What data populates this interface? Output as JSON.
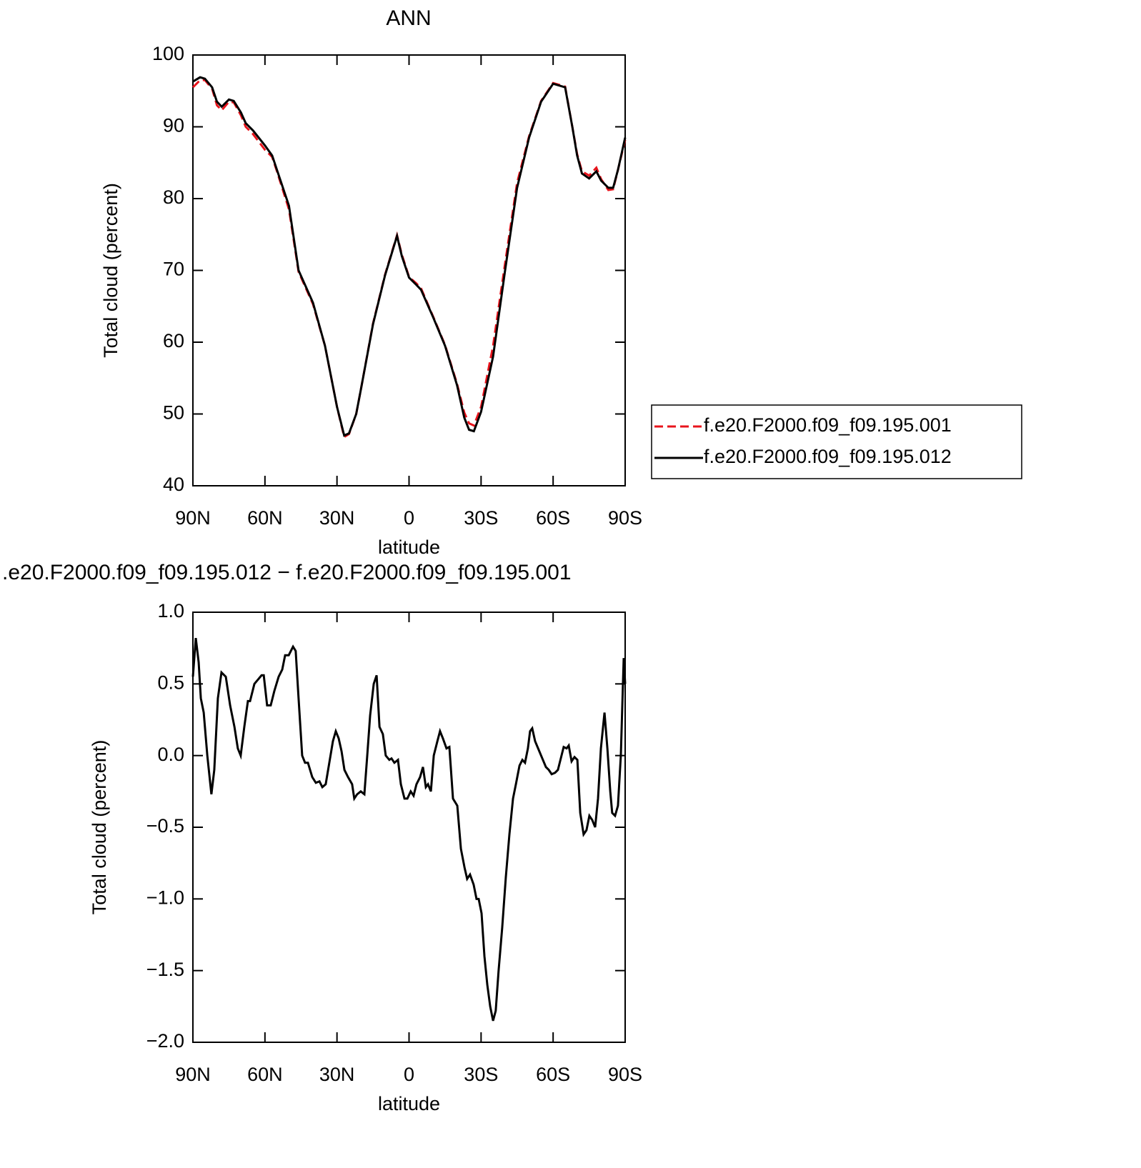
{
  "chart_data": [
    {
      "type": "line",
      "title": "ANN",
      "xlabel": "latitude",
      "ylabel": "Total cloud (percent)",
      "xlim": [
        90,
        -90
      ],
      "xticks": [
        {
          "value": 90,
          "label": "90N"
        },
        {
          "value": 60,
          "label": "60N"
        },
        {
          "value": 30,
          "label": "30N"
        },
        0,
        {
          "value": -30,
          "label": "30S"
        },
        {
          "value": -60,
          "label": "60S"
        },
        {
          "value": -90,
          "label": "90S"
        }
      ],
      "ylim": [
        40,
        100
      ],
      "yticks": [
        40,
        50,
        60,
        70,
        80,
        90,
        100
      ],
      "legend": "right",
      "x": [
        90,
        87,
        85,
        82,
        80,
        78,
        75,
        73,
        70,
        68,
        65,
        60,
        57,
        55,
        50,
        46,
        42,
        40,
        35,
        30,
        27,
        25,
        22,
        20,
        15,
        10,
        5,
        3,
        0,
        -3,
        -5,
        -10,
        -15,
        -20,
        -23,
        -25,
        -27,
        -30,
        -35,
        -40,
        -45,
        -50,
        -55,
        -60,
        -65,
        -68,
        -70,
        -72,
        -75,
        -78,
        -80,
        -83,
        -85,
        -87,
        -90
      ],
      "series": [
        {
          "name": "f.e20.F2000.f09_f09.195.001",
          "color": "#e8141c",
          "linestyle": "dashed",
          "values": [
            95.5,
            96.5,
            96.5,
            95.3,
            93,
            92.3,
            93.5,
            93.4,
            91.6,
            90,
            89,
            86.8,
            85.8,
            83.8,
            78.5,
            69.8,
            66.8,
            65.3,
            59.5,
            51,
            46.8,
            47.2,
            50,
            53.5,
            62.6,
            69.4,
            74.9,
            72.2,
            69.1,
            68.2,
            67.5,
            63.6,
            59.6,
            54.2,
            50.2,
            48.7,
            48.4,
            51,
            59.5,
            71,
            82.2,
            88.7,
            93.6,
            96.1,
            95.6,
            90,
            86.2,
            83.8,
            83.2,
            84.3,
            82.7,
            81.2,
            81.3,
            84,
            88.2
          ]
        },
        {
          "name": "f.e20.F2000.f09_f09.195.012",
          "color": "#000000",
          "linestyle": "solid",
          "values": [
            96.3,
            96.9,
            96.7,
            95.5,
            93.5,
            92.8,
            93.8,
            93.6,
            92,
            90.5,
            89.5,
            87.4,
            86,
            84,
            79,
            70,
            67,
            65.5,
            59.5,
            51,
            47,
            47.3,
            50,
            53.5,
            62.5,
            69.3,
            74.8,
            72,
            69,
            68,
            67.3,
            63.5,
            59.5,
            54,
            49.5,
            47.8,
            47.6,
            50.3,
            58,
            70,
            81.5,
            88.5,
            93.5,
            96,
            95.5,
            90,
            86,
            83.5,
            82.8,
            83.8,
            82.5,
            81.5,
            81.5,
            84,
            88.5
          ]
        }
      ]
    },
    {
      "type": "line",
      "title": ".e20.F2000.f09_f09.195.012 − f.e20.F2000.f09_f09.195.001",
      "xlabel": "latitude",
      "ylabel": "Total cloud (percent)",
      "xlim": [
        90,
        -90
      ],
      "xticks": [
        {
          "value": 90,
          "label": "90N"
        },
        {
          "value": 60,
          "label": "60N"
        },
        {
          "value": 30,
          "label": "30N"
        },
        0,
        {
          "value": -30,
          "label": "30S"
        },
        {
          "value": -60,
          "label": "60S"
        },
        {
          "value": -90,
          "label": "90S"
        }
      ],
      "ylim": [
        -2,
        1
      ],
      "yticks": [
        {
          "value": -2,
          "label": "−2.0"
        },
        {
          "value": -1.5,
          "label": "−1.5"
        },
        {
          "value": -1,
          "label": "−1.0"
        },
        {
          "value": -0.5,
          "label": "−0.5"
        },
        {
          "value": 0,
          "label": "0.0"
        },
        {
          "value": 0.5,
          "label": "0.5"
        },
        {
          "value": 1,
          "label": "1.0"
        }
      ],
      "x": [
        90,
        88.8,
        87.6,
        86.7,
        85.5,
        84.0,
        82.3,
        81.1,
        79.6,
        78.1,
        76.3,
        74.5,
        72.7,
        71.3,
        70.1,
        68.6,
        67.1,
        66.2,
        64.4,
        62.9,
        61.4,
        60.5,
        59.1,
        57.6,
        56.1,
        54.3,
        52.8,
        51.6,
        50.1,
        48.3,
        47.2,
        46.0,
        44.5,
        43.3,
        42.1,
        40.3,
        38.8,
        37.3,
        36.1,
        34.7,
        33.2,
        31.7,
        30.5,
        29.3,
        28.1,
        26.9,
        25.4,
        23.7,
        22.8,
        21.6,
        20.1,
        18.6,
        17.4,
        16.2,
        14.7,
        13.5,
        12.3,
        10.9,
        9.7,
        8.2,
        7.3,
        6.1,
        4.6,
        3.4,
        1.9,
        0.7,
        -0.7,
        -1.9,
        -3.1,
        -4.6,
        -5.8,
        -7.0,
        -7.9,
        -9.1,
        -10.3,
        -11.8,
        -12.9,
        -14.1,
        -15.6,
        -16.8,
        -18.3,
        -20.1,
        -21.6,
        -23.1,
        -24.2,
        -25.4,
        -26.9,
        -28.1,
        -29.0,
        -30.2,
        -31.4,
        -32.6,
        -33.8,
        -35.0,
        -36.1,
        -37.3,
        -38.8,
        -40.3,
        -41.8,
        -43.3,
        -44.5,
        -46.0,
        -47.2,
        -48.3,
        -49.5,
        -50.4,
        -51.3,
        -52.5,
        -54.0,
        -55.5,
        -57.0,
        -58.2,
        -59.4,
        -60.8,
        -62.0,
        -63.2,
        -64.4,
        -65.6,
        -66.5,
        -67.7,
        -68.9,
        -70.1,
        -71.3,
        -72.7,
        -73.9,
        -75.1,
        -76.3,
        -77.5,
        -78.7,
        -79.9,
        -81.4,
        -82.6,
        -83.8,
        -84.6,
        -85.8,
        -87.0,
        -88.2,
        -89.4,
        -90.0
      ],
      "series": [
        {
          "color": "#000000",
          "linestyle": "solid",
          "values": [
            0.55,
            0.82,
            0.65,
            0.4,
            0.3,
            0.0,
            -0.27,
            -0.1,
            0.4,
            0.58,
            0.55,
            0.35,
            0.2,
            0.05,
            0.0,
            0.2,
            0.38,
            0.38,
            0.5,
            0.53,
            0.56,
            0.56,
            0.35,
            0.35,
            0.45,
            0.55,
            0.6,
            0.7,
            0.7,
            0.76,
            0.73,
            0.4,
            0.0,
            -0.05,
            -0.05,
            -0.15,
            -0.19,
            -0.18,
            -0.22,
            -0.2,
            -0.05,
            0.1,
            0.17,
            0.12,
            0.03,
            -0.1,
            -0.15,
            -0.2,
            -0.3,
            -0.27,
            -0.25,
            -0.27,
            0.0,
            0.28,
            0.5,
            0.56,
            0.2,
            0.15,
            0.0,
            -0.03,
            -0.02,
            -0.05,
            -0.03,
            -0.2,
            -0.3,
            -0.3,
            -0.25,
            -0.28,
            -0.2,
            -0.15,
            -0.08,
            -0.22,
            -0.2,
            -0.25,
            0.0,
            0.1,
            0.17,
            0.12,
            0.05,
            0.06,
            -0.3,
            -0.35,
            -0.65,
            -0.78,
            -0.86,
            -0.83,
            -0.9,
            -1.0,
            -1.0,
            -1.1,
            -1.4,
            -1.6,
            -1.75,
            -1.85,
            -1.78,
            -1.5,
            -1.2,
            -0.85,
            -0.55,
            -0.3,
            -0.2,
            -0.07,
            -0.03,
            -0.05,
            0.05,
            0.17,
            0.19,
            0.1,
            0.04,
            -0.02,
            -0.08,
            -0.1,
            -0.13,
            -0.12,
            -0.1,
            -0.02,
            0.06,
            0.05,
            0.07,
            -0.04,
            -0.01,
            -0.03,
            -0.4,
            -0.55,
            -0.52,
            -0.42,
            -0.45,
            -0.5,
            -0.3,
            0.05,
            0.3,
            0.05,
            -0.25,
            -0.4,
            -0.42,
            -0.35,
            0.0,
            0.68,
            0.5
          ]
        }
      ]
    }
  ]
}
